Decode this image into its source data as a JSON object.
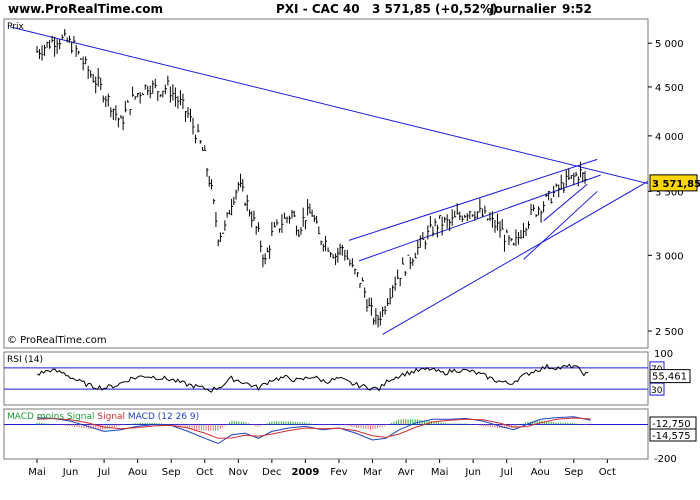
{
  "header": {
    "site": "www.ProRealTime.com",
    "instrument": "PXI - CAC 40",
    "price_change": "3 571,85 (+0,52%)",
    "period": "Journalier",
    "time": "9:52"
  },
  "watermark": "© ProRealTime.com",
  "chart_data": [
    {
      "type": "candlestick",
      "label": "Prix",
      "y_scale": "log",
      "ylim": [
        2400,
        5300
      ],
      "y_ticks": [
        {
          "v": 2500,
          "label": "2 500"
        },
        {
          "v": 3000,
          "label": "3 000"
        },
        {
          "v": 3500,
          "label": "3 500"
        },
        {
          "v": 4000,
          "label": "4 000"
        },
        {
          "v": 4500,
          "label": "4 500"
        },
        {
          "v": 5000,
          "label": "5 000"
        }
      ],
      "last_value": 3571.85,
      "last_value_label": "3 571,85",
      "x_labels": [
        "Mai",
        "Jun",
        "Jul",
        "Aou",
        "Sep",
        "Oct",
        "Nov",
        "Dec",
        "2009",
        "Fev",
        "Mar",
        "Avr",
        "Mai",
        "Jun",
        "Jul",
        "Aou",
        "Sep",
        "Oct"
      ],
      "x_label_months": [
        0,
        1,
        2,
        3,
        4,
        5,
        6,
        7,
        8,
        9,
        10,
        11,
        12,
        13,
        14,
        15,
        16,
        17
      ],
      "series": [
        {
          "values": [
            [
              0.0,
              4900
            ],
            [
              0.3,
              4980
            ],
            [
              0.6,
              5060
            ],
            [
              0.9,
              5020
            ],
            [
              1.1,
              4960
            ],
            [
              1.3,
              4820
            ],
            [
              1.6,
              4640
            ],
            [
              1.9,
              4490
            ],
            [
              2.2,
              4320
            ],
            [
              2.5,
              4120
            ],
            [
              2.7,
              4290
            ],
            [
              3.0,
              4430
            ],
            [
              3.3,
              4520
            ],
            [
              3.6,
              4470
            ],
            [
              3.9,
              4500
            ],
            [
              4.2,
              4360
            ],
            [
              4.5,
              4210
            ],
            [
              4.8,
              3980
            ],
            [
              5.0,
              3800
            ],
            [
              5.2,
              3500
            ],
            [
              5.4,
              3150
            ],
            [
              5.6,
              3200
            ],
            [
              5.8,
              3420
            ],
            [
              6.0,
              3560
            ],
            [
              6.2,
              3440
            ],
            [
              6.4,
              3300
            ],
            [
              6.6,
              3150
            ],
            [
              6.8,
              2950
            ],
            [
              7.0,
              3150
            ],
            [
              7.3,
              3250
            ],
            [
              7.6,
              3320
            ],
            [
              7.8,
              3200
            ],
            [
              8.0,
              3300
            ],
            [
              8.2,
              3320
            ],
            [
              8.4,
              3140
            ],
            [
              8.6,
              3100
            ],
            [
              8.9,
              3000
            ],
            [
              9.1,
              3060
            ],
            [
              9.4,
              2900
            ],
            [
              9.7,
              2800
            ],
            [
              9.9,
              2640
            ],
            [
              10.1,
              2560
            ],
            [
              10.3,
              2620
            ],
            [
              10.6,
              2800
            ],
            [
              10.9,
              2900
            ],
            [
              11.2,
              3000
            ],
            [
              11.5,
              3100
            ],
            [
              11.8,
              3200
            ],
            [
              12.0,
              3250
            ],
            [
              12.3,
              3240
            ],
            [
              12.6,
              3300
            ],
            [
              12.9,
              3350
            ],
            [
              13.2,
              3320
            ],
            [
              13.5,
              3260
            ],
            [
              13.8,
              3200
            ],
            [
              14.0,
              3120
            ],
            [
              14.2,
              3050
            ],
            [
              14.5,
              3220
            ],
            [
              14.8,
              3330
            ],
            [
              15.1,
              3400
            ],
            [
              15.4,
              3480
            ],
            [
              15.7,
              3560
            ],
            [
              16.0,
              3620
            ],
            [
              16.2,
              3660
            ],
            [
              16.4,
              3572
            ]
          ]
        }
      ],
      "trendlines": [
        {
          "from": [
            -0.8,
            5200
          ],
          "to": [
            18.3,
            3560
          ]
        },
        {
          "from": [
            10.3,
            2480
          ],
          "to": [
            18.3,
            3600
          ]
        },
        {
          "from": [
            9.3,
            3110
          ],
          "to": [
            16.7,
            3780
          ]
        },
        {
          "from": [
            9.6,
            2960
          ],
          "to": [
            16.8,
            3640
          ]
        },
        {
          "from": [
            14.5,
            2970
          ],
          "to": [
            16.7,
            3500
          ]
        },
        {
          "from": [
            15.1,
            3260
          ],
          "to": [
            16.4,
            3560
          ]
        }
      ]
    },
    {
      "type": "line",
      "title": "RSI (14)",
      "ylim": [
        0,
        100
      ],
      "reference_lines": [
        70,
        30
      ],
      "labels": {
        "top": "100",
        "l70": "70",
        "l30": "30"
      },
      "last_value": 55.461,
      "last_value_label": "55,461",
      "series": [
        {
          "values": [
            [
              0.0,
              58
            ],
            [
              0.4,
              66
            ],
            [
              0.8,
              60
            ],
            [
              1.2,
              46
            ],
            [
              1.6,
              36
            ],
            [
              2.0,
              32
            ],
            [
              2.4,
              38
            ],
            [
              2.8,
              50
            ],
            [
              3.2,
              55
            ],
            [
              3.6,
              52
            ],
            [
              4.0,
              48
            ],
            [
              4.4,
              40
            ],
            [
              4.8,
              34
            ],
            [
              5.2,
              28
            ],
            [
              5.5,
              36
            ],
            [
              5.8,
              50
            ],
            [
              6.2,
              42
            ],
            [
              6.6,
              32
            ],
            [
              7.0,
              48
            ],
            [
              7.4,
              52
            ],
            [
              7.8,
              46
            ],
            [
              8.2,
              54
            ],
            [
              8.6,
              44
            ],
            [
              9.0,
              50
            ],
            [
              9.4,
              40
            ],
            [
              9.8,
              34
            ],
            [
              10.2,
              30
            ],
            [
              10.5,
              48
            ],
            [
              10.9,
              58
            ],
            [
              11.3,
              64
            ],
            [
              11.7,
              68
            ],
            [
              12.1,
              60
            ],
            [
              12.5,
              66
            ],
            [
              12.9,
              64
            ],
            [
              13.3,
              56
            ],
            [
              13.7,
              46
            ],
            [
              14.1,
              40
            ],
            [
              14.4,
              52
            ],
            [
              14.8,
              64
            ],
            [
              15.2,
              72
            ],
            [
              15.6,
              70
            ],
            [
              16.0,
              74
            ],
            [
              16.3,
              60
            ],
            [
              16.5,
              55.461
            ]
          ]
        }
      ]
    },
    {
      "type": "line",
      "title_parts": [
        {
          "text": "MACD moins Signal",
          "color": "#1e9a3a"
        },
        {
          "text": " ",
          "color": "#000000"
        },
        {
          "text": "Signal",
          "color": "#d03030"
        },
        {
          "text": " ",
          "color": "#000000"
        },
        {
          "text": "MACD (12 26 9)",
          "color": "#1f3fbf"
        }
      ],
      "ylim": [
        -200,
        90
      ],
      "labels": {
        "top": "0",
        "bottom": "-200"
      },
      "values_shown": [
        {
          "label": "-12,750",
          "color": "#ff8000"
        },
        {
          "label": "-14,575",
          "color": "#ff8000"
        }
      ],
      "series": [
        {
          "name": "MACD",
          "color": "#1f3fbf",
          "values": [
            [
              0.0,
              40
            ],
            [
              0.5,
              35
            ],
            [
              1.0,
              20
            ],
            [
              1.5,
              -10
            ],
            [
              2.0,
              -40
            ],
            [
              2.5,
              -30
            ],
            [
              3.0,
              -10
            ],
            [
              3.5,
              0
            ],
            [
              4.0,
              -5
            ],
            [
              4.5,
              -40
            ],
            [
              5.0,
              -80
            ],
            [
              5.4,
              -110
            ],
            [
              5.8,
              -60
            ],
            [
              6.2,
              -50
            ],
            [
              6.6,
              -80
            ],
            [
              7.0,
              -40
            ],
            [
              7.5,
              -20
            ],
            [
              8.0,
              -10
            ],
            [
              8.5,
              -30
            ],
            [
              9.0,
              -20
            ],
            [
              9.5,
              -50
            ],
            [
              10.0,
              -90
            ],
            [
              10.4,
              -80
            ],
            [
              10.8,
              -30
            ],
            [
              11.3,
              10
            ],
            [
              11.8,
              30
            ],
            [
              12.3,
              30
            ],
            [
              12.8,
              35
            ],
            [
              13.3,
              20
            ],
            [
              13.8,
              -10
            ],
            [
              14.2,
              -30
            ],
            [
              14.6,
              0
            ],
            [
              15.0,
              30
            ],
            [
              15.5,
              40
            ],
            [
              16.0,
              45
            ],
            [
              16.5,
              25
            ]
          ]
        },
        {
          "name": "Signal",
          "color": "#d03030",
          "values": [
            [
              0.0,
              30
            ],
            [
              0.5,
              35
            ],
            [
              1.0,
              28
            ],
            [
              1.5,
              10
            ],
            [
              2.0,
              -15
            ],
            [
              2.5,
              -25
            ],
            [
              3.0,
              -18
            ],
            [
              3.5,
              -8
            ],
            [
              4.0,
              -5
            ],
            [
              4.5,
              -20
            ],
            [
              5.0,
              -50
            ],
            [
              5.4,
              -80
            ],
            [
              5.8,
              -78
            ],
            [
              6.2,
              -62
            ],
            [
              6.6,
              -68
            ],
            [
              7.0,
              -55
            ],
            [
              7.5,
              -35
            ],
            [
              8.0,
              -20
            ],
            [
              8.5,
              -25
            ],
            [
              9.0,
              -22
            ],
            [
              9.5,
              -35
            ],
            [
              10.0,
              -65
            ],
            [
              10.4,
              -75
            ],
            [
              10.8,
              -55
            ],
            [
              11.3,
              -15
            ],
            [
              11.8,
              15
            ],
            [
              12.3,
              25
            ],
            [
              12.8,
              30
            ],
            [
              13.3,
              28
            ],
            [
              13.8,
              8
            ],
            [
              14.2,
              -15
            ],
            [
              14.6,
              -12
            ],
            [
              15.0,
              10
            ],
            [
              15.5,
              30
            ],
            [
              16.0,
              38
            ],
            [
              16.5,
              32
            ]
          ]
        }
      ]
    }
  ]
}
